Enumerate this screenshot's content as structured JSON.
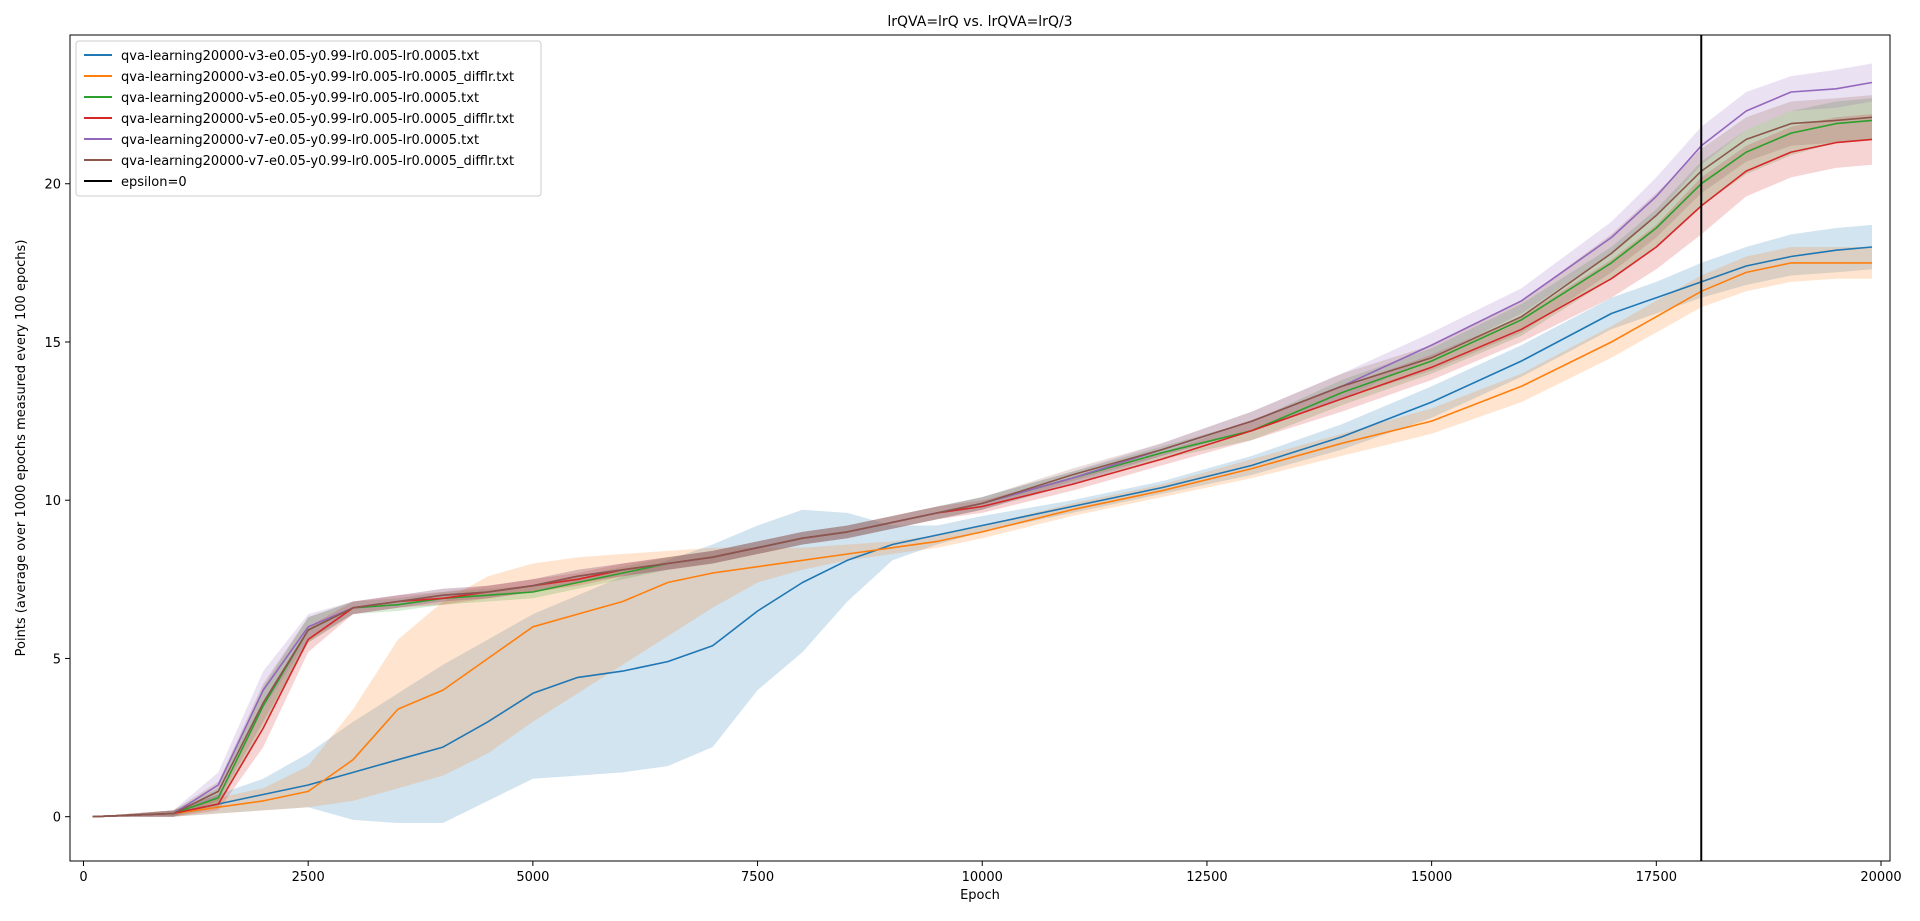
{
  "chart_data": {
    "type": "line",
    "title": "lrQVA=lrQ vs. lrQVA=lrQ/3",
    "xlabel": "Epoch",
    "ylabel": "Points (average over 1000 epochs measured every 100 epochs)",
    "xlim": [
      -150,
      20100
    ],
    "ylim": [
      -1.4,
      24.7
    ],
    "xticks": [
      0,
      2500,
      5000,
      7500,
      10000,
      12500,
      15000,
      17500,
      20000
    ],
    "yticks": [
      0,
      5,
      10,
      15,
      20
    ],
    "grid": false,
    "legend_position": "top-left",
    "vertical_line": {
      "name": "epsilon=0",
      "x": 18000,
      "color": "#000000"
    },
    "x": [
      100,
      1000,
      1500,
      2000,
      2500,
      3000,
      3500,
      4000,
      4500,
      5000,
      5500,
      6000,
      6500,
      7000,
      7500,
      8000,
      8500,
      9000,
      9500,
      10000,
      11000,
      12000,
      13000,
      14000,
      15000,
      16000,
      17000,
      17500,
      18000,
      18500,
      19000,
      19500,
      19900
    ],
    "series": [
      {
        "name": "qva-learning20000-v3-e0.05-y0.99-lr0.005-lr0.0005.txt",
        "color": "#1f77b4",
        "values": [
          0.0,
          0.1,
          0.4,
          0.7,
          1.0,
          1.4,
          1.8,
          2.2,
          3.0,
          3.9,
          4.4,
          4.6,
          4.9,
          5.4,
          6.5,
          7.4,
          8.1,
          8.6,
          8.9,
          9.2,
          9.8,
          10.4,
          11.1,
          12.0,
          13.1,
          14.4,
          15.9,
          16.4,
          16.9,
          17.4,
          17.7,
          17.9,
          18.0
        ],
        "lower": [
          0.0,
          0.0,
          0.1,
          0.2,
          0.3,
          -0.1,
          -0.2,
          -0.2,
          0.5,
          1.2,
          1.3,
          1.4,
          1.6,
          2.2,
          4.0,
          5.2,
          6.8,
          8.1,
          8.6,
          9.0,
          9.6,
          10.2,
          10.8,
          11.6,
          12.6,
          13.9,
          15.4,
          15.9,
          16.4,
          16.8,
          17.1,
          17.2,
          17.3
        ],
        "upper": [
          0.0,
          0.2,
          0.7,
          1.2,
          2.0,
          3.0,
          3.9,
          4.8,
          5.6,
          6.4,
          7.0,
          7.6,
          8.1,
          8.6,
          9.2,
          9.7,
          9.6,
          9.2,
          9.2,
          9.5,
          10.0,
          10.6,
          11.4,
          12.4,
          13.6,
          14.9,
          16.4,
          16.9,
          17.5,
          18.0,
          18.4,
          18.6,
          18.7
        ]
      },
      {
        "name": "qva-learning20000-v3-e0.05-y0.99-lr0.005-lr0.0005_difflr.txt",
        "color": "#ff7f0e",
        "values": [
          0.0,
          0.1,
          0.3,
          0.5,
          0.8,
          1.8,
          3.4,
          4.0,
          5.0,
          6.0,
          6.4,
          6.8,
          7.4,
          7.7,
          7.9,
          8.1,
          8.3,
          8.5,
          8.7,
          9.0,
          9.7,
          10.3,
          11.0,
          11.8,
          12.5,
          13.6,
          15.0,
          15.8,
          16.6,
          17.2,
          17.5,
          17.5,
          17.5
        ],
        "lower": [
          0.0,
          0.0,
          0.1,
          0.2,
          0.3,
          0.5,
          0.9,
          1.3,
          2.0,
          3.0,
          3.9,
          4.8,
          5.7,
          6.6,
          7.4,
          7.8,
          8.1,
          8.3,
          8.5,
          8.8,
          9.5,
          10.1,
          10.7,
          11.4,
          12.1,
          13.1,
          14.5,
          15.3,
          16.1,
          16.6,
          16.9,
          17.0,
          17.0
        ],
        "upper": [
          0.0,
          0.2,
          0.6,
          0.9,
          1.6,
          3.4,
          5.6,
          6.8,
          7.6,
          8.0,
          8.2,
          8.3,
          8.4,
          8.5,
          8.5,
          8.5,
          8.6,
          8.7,
          8.9,
          9.2,
          9.9,
          10.5,
          11.3,
          12.1,
          12.9,
          14.0,
          15.5,
          16.3,
          17.1,
          17.7,
          18.0,
          18.0,
          18.0
        ]
      },
      {
        "name": "qva-learning20000-v5-e0.05-y0.99-lr0.005-lr0.0005.txt",
        "color": "#2ca02c",
        "values": [
          0.0,
          0.1,
          0.6,
          3.5,
          5.9,
          6.6,
          6.7,
          6.9,
          7.0,
          7.1,
          7.4,
          7.7,
          8.0,
          8.2,
          8.5,
          8.8,
          9.0,
          9.3,
          9.6,
          9.9,
          10.7,
          11.5,
          12.2,
          13.4,
          14.4,
          15.7,
          17.5,
          18.6,
          20.0,
          21.0,
          21.6,
          21.9,
          22.0
        ],
        "lower": [
          0.0,
          0.0,
          0.3,
          2.9,
          5.5,
          6.4,
          6.5,
          6.7,
          6.8,
          6.9,
          7.2,
          7.5,
          7.8,
          8.0,
          8.3,
          8.6,
          8.8,
          9.1,
          9.4,
          9.7,
          10.5,
          11.3,
          11.9,
          13.0,
          14.0,
          15.2,
          17.0,
          18.0,
          19.3,
          20.3,
          20.9,
          21.3,
          21.4
        ],
        "upper": [
          0.0,
          0.2,
          0.9,
          4.1,
          6.3,
          6.8,
          6.9,
          7.1,
          7.2,
          7.3,
          7.6,
          7.9,
          8.2,
          8.4,
          8.7,
          9.0,
          9.2,
          9.5,
          9.8,
          10.1,
          10.9,
          11.7,
          12.5,
          13.8,
          14.8,
          16.2,
          18.0,
          19.2,
          20.7,
          21.7,
          22.3,
          22.6,
          22.7
        ]
      },
      {
        "name": "qva-learning20000-v5-e0.05-y0.99-lr0.005-lr0.0005_difflr.txt",
        "color": "#d62728",
        "values": [
          0.0,
          0.1,
          0.4,
          2.8,
          5.6,
          6.6,
          6.8,
          6.9,
          7.1,
          7.3,
          7.5,
          7.8,
          8.0,
          8.2,
          8.5,
          8.8,
          9.0,
          9.3,
          9.6,
          9.8,
          10.5,
          11.3,
          12.2,
          13.2,
          14.2,
          15.4,
          17.0,
          18.0,
          19.3,
          20.4,
          21.0,
          21.3,
          21.4
        ],
        "lower": [
          0.0,
          0.0,
          0.2,
          2.2,
          5.2,
          6.4,
          6.6,
          6.7,
          6.9,
          7.1,
          7.3,
          7.6,
          7.8,
          8.0,
          8.3,
          8.6,
          8.8,
          9.1,
          9.4,
          9.6,
          10.3,
          11.1,
          11.9,
          12.8,
          13.8,
          15.0,
          16.4,
          17.3,
          18.4,
          19.6,
          20.2,
          20.5,
          20.6
        ],
        "upper": [
          0.0,
          0.2,
          0.7,
          3.4,
          6.0,
          6.8,
          7.0,
          7.1,
          7.3,
          7.5,
          7.7,
          8.0,
          8.2,
          8.4,
          8.7,
          9.0,
          9.2,
          9.5,
          9.8,
          10.0,
          10.7,
          11.5,
          12.5,
          13.6,
          14.6,
          15.8,
          17.6,
          18.7,
          20.2,
          21.2,
          21.8,
          22.1,
          22.2
        ]
      },
      {
        "name": "qva-learning20000-v7-e0.05-y0.99-lr0.005-lr0.0005.txt",
        "color": "#9467bd",
        "values": [
          0.0,
          0.1,
          1.0,
          4.0,
          6.0,
          6.6,
          6.8,
          7.0,
          7.1,
          7.3,
          7.6,
          7.8,
          8.0,
          8.2,
          8.5,
          8.8,
          9.0,
          9.3,
          9.6,
          9.9,
          10.7,
          11.6,
          12.5,
          13.6,
          14.9,
          16.3,
          18.3,
          19.6,
          21.2,
          22.3,
          22.9,
          23.0,
          23.2
        ],
        "lower": [
          0.0,
          0.0,
          0.6,
          3.4,
          5.6,
          6.4,
          6.6,
          6.8,
          6.9,
          7.1,
          7.4,
          7.6,
          7.8,
          8.0,
          8.3,
          8.6,
          8.8,
          9.1,
          9.4,
          9.7,
          10.5,
          11.4,
          12.2,
          13.2,
          14.5,
          15.9,
          17.8,
          19.0,
          20.6,
          21.7,
          22.3,
          22.4,
          22.6
        ],
        "upper": [
          0.0,
          0.2,
          1.4,
          4.6,
          6.4,
          6.8,
          7.0,
          7.2,
          7.3,
          7.5,
          7.8,
          8.0,
          8.2,
          8.4,
          8.7,
          9.0,
          9.2,
          9.5,
          9.8,
          10.1,
          10.9,
          11.8,
          12.8,
          14.0,
          15.3,
          16.7,
          18.8,
          20.2,
          21.8,
          22.9,
          23.4,
          23.6,
          23.8
        ]
      },
      {
        "name": "qva-learning20000-v7-e0.05-y0.99-lr0.005-lr0.0005_difflr.txt",
        "color": "#8c564b",
        "values": [
          0.0,
          0.1,
          0.8,
          3.6,
          5.9,
          6.6,
          6.8,
          7.0,
          7.1,
          7.3,
          7.6,
          7.8,
          8.0,
          8.2,
          8.5,
          8.8,
          9.0,
          9.3,
          9.6,
          9.9,
          10.8,
          11.6,
          12.5,
          13.6,
          14.5,
          15.8,
          17.8,
          19.0,
          20.4,
          21.4,
          21.9,
          22.0,
          22.1
        ],
        "lower": [
          0.0,
          0.0,
          0.5,
          3.0,
          5.5,
          6.4,
          6.6,
          6.8,
          6.9,
          7.1,
          7.4,
          7.6,
          7.8,
          8.0,
          8.3,
          8.6,
          8.8,
          9.1,
          9.4,
          9.7,
          10.6,
          11.4,
          12.2,
          13.2,
          14.1,
          15.3,
          17.2,
          18.3,
          19.7,
          20.7,
          21.2,
          21.3,
          21.4
        ],
        "upper": [
          0.0,
          0.2,
          1.1,
          4.2,
          6.3,
          6.8,
          7.0,
          7.2,
          7.3,
          7.5,
          7.8,
          8.0,
          8.2,
          8.4,
          8.7,
          9.0,
          9.2,
          9.5,
          9.8,
          10.1,
          11.0,
          11.8,
          12.8,
          14.0,
          14.9,
          16.3,
          18.4,
          19.7,
          21.1,
          22.1,
          22.6,
          22.7,
          22.8
        ]
      }
    ]
  }
}
